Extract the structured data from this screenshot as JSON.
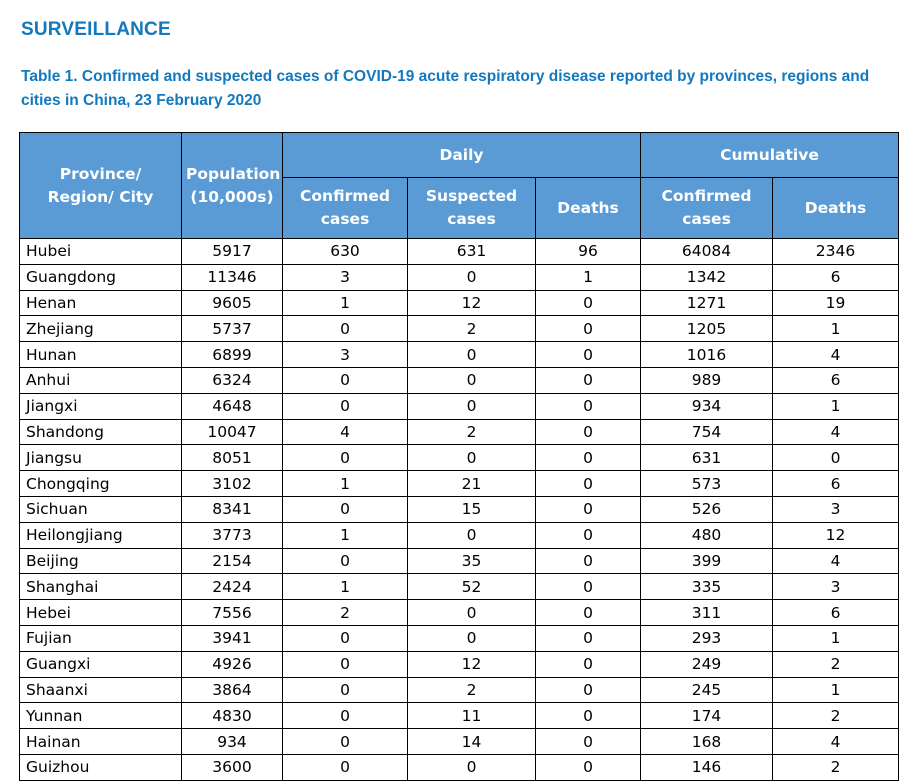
{
  "section": {
    "title": "SURVEILLANCE"
  },
  "table_caption": "Table 1. Confirmed and suspected cases of COVID-19 acute respiratory disease reported by provinces, regions and cities in China, 23 February 2020",
  "colors": {
    "title_blue": "#1378bd",
    "header_fill": "#5b9bd5",
    "header_text": "#ffffff",
    "border": "#000000"
  },
  "table": {
    "headers": {
      "province": "Province/ Region/ City",
      "population": "Population (10,000s)",
      "daily": "Daily",
      "cumulative": "Cumulative",
      "daily_confirmed": "Confirmed cases",
      "daily_suspected": "Suspected cases",
      "daily_deaths": "Deaths",
      "cum_confirmed": "Confirmed cases",
      "cum_deaths": "Deaths"
    },
    "rows": [
      [
        "Hubei",
        "5917",
        "630",
        "631",
        "96",
        "64084",
        "2346"
      ],
      [
        "Guangdong",
        "11346",
        "3",
        "0",
        "1",
        "1342",
        "6"
      ],
      [
        "Henan",
        "9605",
        "1",
        "12",
        "0",
        "1271",
        "19"
      ],
      [
        "Zhejiang",
        "5737",
        "0",
        "2",
        "0",
        "1205",
        "1"
      ],
      [
        "Hunan",
        "6899",
        "3",
        "0",
        "0",
        "1016",
        "4"
      ],
      [
        "Anhui",
        "6324",
        "0",
        "0",
        "0",
        "989",
        "6"
      ],
      [
        "Jiangxi",
        "4648",
        "0",
        "0",
        "0",
        "934",
        "1"
      ],
      [
        "Shandong",
        "10047",
        "4",
        "2",
        "0",
        "754",
        "4"
      ],
      [
        "Jiangsu",
        "8051",
        "0",
        "0",
        "0",
        "631",
        "0"
      ],
      [
        "Chongqing",
        "3102",
        "1",
        "21",
        "0",
        "573",
        "6"
      ],
      [
        "Sichuan",
        "8341",
        "0",
        "15",
        "0",
        "526",
        "3"
      ],
      [
        "Heilongjiang",
        "3773",
        "1",
        "0",
        "0",
        "480",
        "12"
      ],
      [
        "Beijing",
        "2154",
        "0",
        "35",
        "0",
        "399",
        "4"
      ],
      [
        "Shanghai",
        "2424",
        "1",
        "52",
        "0",
        "335",
        "3"
      ],
      [
        "Hebei",
        "7556",
        "2",
        "0",
        "0",
        "311",
        "6"
      ],
      [
        "Fujian",
        "3941",
        "0",
        "0",
        "0",
        "293",
        "1"
      ],
      [
        "Guangxi",
        "4926",
        "0",
        "12",
        "0",
        "249",
        "2"
      ],
      [
        "Shaanxi",
        "3864",
        "0",
        "2",
        "0",
        "245",
        "1"
      ],
      [
        "Yunnan",
        "4830",
        "0",
        "11",
        "0",
        "174",
        "2"
      ],
      [
        "Hainan",
        "934",
        "0",
        "14",
        "0",
        "168",
        "4"
      ],
      [
        "Guizhou",
        "3600",
        "0",
        "0",
        "0",
        "146",
        "2"
      ]
    ]
  }
}
